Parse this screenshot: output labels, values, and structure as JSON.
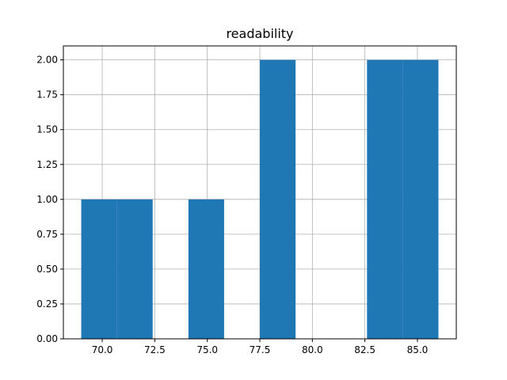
{
  "chart_data": {
    "type": "bar",
    "title": "readability",
    "xlabel": "",
    "ylabel": "",
    "xlim": [
      68.15,
      86.85
    ],
    "ylim": [
      0,
      2.1
    ],
    "grid": true,
    "bar_color": "#1f77b4",
    "grid_color": "#b0b0b0",
    "bins": [
      {
        "start": 69.0,
        "end": 70.7,
        "count": 1
      },
      {
        "start": 70.7,
        "end": 72.4,
        "count": 1
      },
      {
        "start": 72.4,
        "end": 74.1,
        "count": 0
      },
      {
        "start": 74.1,
        "end": 75.8,
        "count": 1
      },
      {
        "start": 75.8,
        "end": 77.5,
        "count": 0
      },
      {
        "start": 77.5,
        "end": 79.2,
        "count": 2
      },
      {
        "start": 79.2,
        "end": 80.9,
        "count": 0
      },
      {
        "start": 80.9,
        "end": 82.6,
        "count": 0
      },
      {
        "start": 82.6,
        "end": 84.3,
        "count": 2
      },
      {
        "start": 84.3,
        "end": 86.0,
        "count": 2
      }
    ],
    "x_ticks": [
      70.0,
      72.5,
      75.0,
      77.5,
      80.0,
      82.5,
      85.0
    ],
    "x_tick_labels": [
      "70.0",
      "72.5",
      "75.0",
      "77.5",
      "80.0",
      "82.5",
      "85.0"
    ],
    "y_ticks": [
      0,
      0.25,
      0.5,
      0.75,
      1.0,
      1.25,
      1.5,
      1.75,
      2.0
    ],
    "y_tick_labels": [
      "0.00",
      "0.25",
      "0.50",
      "0.75",
      "1.00",
      "1.25",
      "1.50",
      "1.75",
      "2.00"
    ]
  }
}
